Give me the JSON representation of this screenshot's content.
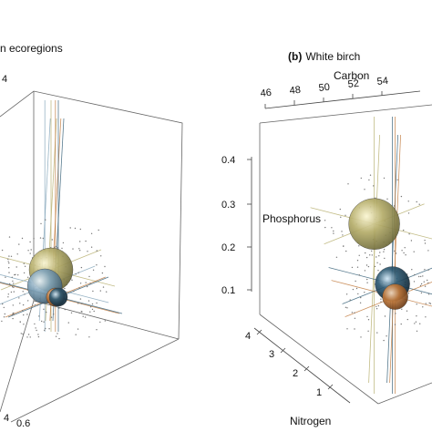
{
  "chart_data": [
    {
      "type": "scatter",
      "panel_label": "",
      "title_fragment": "n ecoregions",
      "carbon_tick_fragment": "4",
      "nitrogen_ticks_visible": [
        "0.6"
      ],
      "bottom_left_fragment": "4",
      "spheres": [
        {
          "name": "",
          "color": "#b5ad6a",
          "carbon": 51.5,
          "nitrogen": 0.5,
          "phosphorus": 0.14,
          "size": 24
        },
        {
          "name": "",
          "color": "#7fa2b8",
          "carbon": 51.0,
          "nitrogen": 0.46,
          "phosphorus": 0.11,
          "size": 19
        },
        {
          "name": "",
          "color": "#c0783a",
          "carbon": 53.0,
          "nitrogen": 0.49,
          "phosphorus": 0.09,
          "size": 10
        },
        {
          "name": "",
          "color": "#2e5a73",
          "carbon": 53.5,
          "nitrogen": 0.5,
          "phosphorus": 0.09,
          "size": 10
        }
      ]
    },
    {
      "type": "scatter",
      "panel_label": "(b)",
      "title": "White birch",
      "xlabel_top": "Carbon",
      "carbon_ticks": [
        "46",
        "48",
        "50",
        "52",
        "54"
      ],
      "phosphorus_label": "Phosphorus",
      "phosphorus_ticks": [
        "0.4",
        "0.3",
        "0.2",
        "0.1"
      ],
      "nitrogen_label": "Nitrogen",
      "nitrogen_ticks": [
        "4",
        "3",
        "2",
        "1"
      ],
      "spheres": [
        {
          "name": "",
          "color": "#b5ad6a",
          "carbon": 50.5,
          "nitrogen": 2.6,
          "phosphorus": 0.29,
          "size": 28
        },
        {
          "name": "",
          "color": "#2e5a73",
          "carbon": 54.5,
          "nitrogen": 1.6,
          "phosphorus": 0.15,
          "size": 19
        },
        {
          "name": "",
          "color": "#c0783a",
          "carbon": 55.5,
          "nitrogen": 1.2,
          "phosphorus": 0.12,
          "size": 14
        }
      ]
    }
  ],
  "colors": {
    "olive": "#b5ad6a",
    "steel": "#7fa2b8",
    "navy": "#2e5a73",
    "orange": "#c0783a",
    "box": "#666666"
  }
}
